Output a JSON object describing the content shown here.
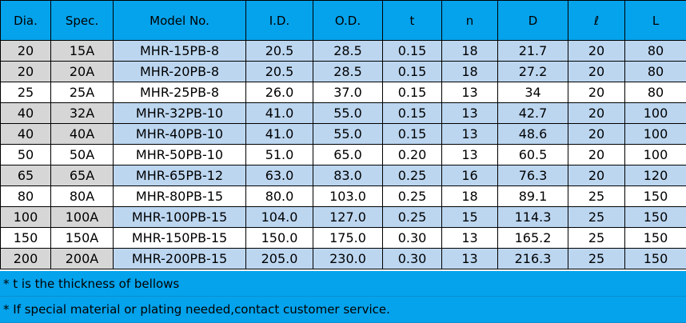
{
  "headers": [
    "Dia.",
    "Spec.",
    "Model No.",
    "I.D.",
    "O.D.",
    "t",
    "n",
    "D",
    "ℓ",
    "L"
  ],
  "rows": [
    {
      "shaded": true,
      "cells": [
        "20",
        "15A",
        "MHR-15PB-8",
        "20.5",
        "28.5",
        "0.15",
        "18",
        "21.7",
        "20",
        "80"
      ]
    },
    {
      "shaded": true,
      "cells": [
        "20",
        "20A",
        "MHR-20PB-8",
        "20.5",
        "28.5",
        "0.15",
        "18",
        "27.2",
        "20",
        "80"
      ]
    },
    {
      "shaded": false,
      "cells": [
        "25",
        "25A",
        "MHR-25PB-8",
        "26.0",
        "37.0",
        "0.15",
        "13",
        "34",
        "20",
        "80"
      ]
    },
    {
      "shaded": true,
      "cells": [
        "40",
        "32A",
        "MHR-32PB-10",
        "41.0",
        "55.0",
        "0.15",
        "13",
        "42.7",
        "20",
        "100"
      ]
    },
    {
      "shaded": true,
      "cells": [
        "40",
        "40A",
        "MHR-40PB-10",
        "41.0",
        "55.0",
        "0.15",
        "13",
        "48.6",
        "20",
        "100"
      ]
    },
    {
      "shaded": false,
      "cells": [
        "50",
        "50A",
        "MHR-50PB-10",
        "51.0",
        "65.0",
        "0.20",
        "13",
        "60.5",
        "20",
        "100"
      ]
    },
    {
      "shaded": true,
      "cells": [
        "65",
        "65A",
        "MHR-65PB-12",
        "63.0",
        "83.0",
        "0.25",
        "16",
        "76.3",
        "20",
        "120"
      ]
    },
    {
      "shaded": false,
      "cells": [
        "80",
        "80A",
        "MHR-80PB-15",
        "80.0",
        "103.0",
        "0.25",
        "18",
        "89.1",
        "25",
        "150"
      ]
    },
    {
      "shaded": true,
      "cells": [
        "100",
        "100A",
        "MHR-100PB-15",
        "104.0",
        "127.0",
        "0.25",
        "15",
        "114.3",
        "25",
        "150"
      ]
    },
    {
      "shaded": false,
      "cells": [
        "150",
        "150A",
        "MHR-150PB-15",
        "150.0",
        "175.0",
        "0.30",
        "13",
        "165.2",
        "25",
        "150"
      ]
    },
    {
      "shaded": true,
      "cells": [
        "200",
        "200A",
        "MHR-200PB-15",
        "205.0",
        "230.0",
        "0.30",
        "13",
        "216.3",
        "25",
        "150"
      ]
    }
  ],
  "notes": [
    "* t is the thickness of bellows",
    "* If special material or plating needed,contact customer service."
  ],
  "colors": {
    "header_bg": "#04a3ec",
    "shaded_left": "#d6d6d6",
    "shaded_right": "#bcd6f0",
    "plain": "#ffffff"
  }
}
